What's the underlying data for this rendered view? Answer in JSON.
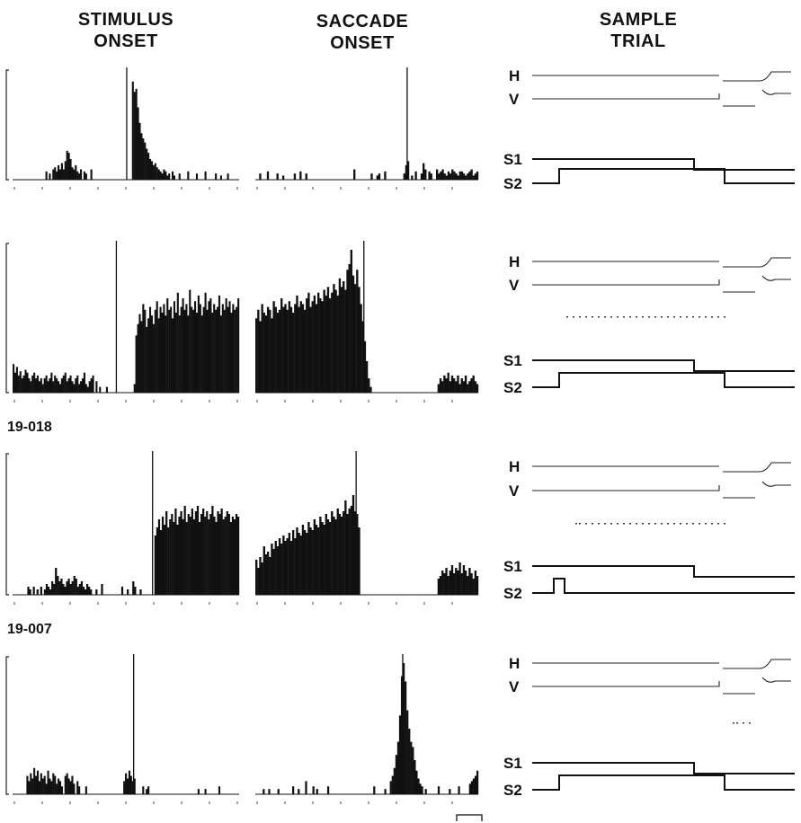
{
  "header": {
    "stimulus": [
      "STIMULUS",
      "ONSET"
    ],
    "saccade": [
      "SACCADE",
      "ONSET"
    ],
    "sample": [
      "SAMPLE",
      "TRIAL"
    ]
  },
  "chart_data": {
    "type": "bar",
    "description_units": "spike histogram bin height, arbitrary units (0-100 of panel scale)",
    "rows": [
      {
        "cell_label": "",
        "stimulus_hist": [
          0,
          0,
          0,
          0,
          0,
          0,
          0,
          0,
          0,
          0,
          0,
          0,
          0,
          0,
          0,
          0,
          0,
          0,
          0,
          8,
          0,
          6,
          0,
          10,
          12,
          8,
          14,
          10,
          16,
          10,
          18,
          28,
          26,
          20,
          12,
          10,
          14,
          8,
          6,
          10,
          0,
          8,
          6,
          0,
          0,
          10,
          0,
          0,
          0,
          0,
          0,
          0,
          0,
          0,
          0,
          0,
          0,
          0,
          0,
          0,
          0,
          0,
          0,
          0,
          0,
          0,
          0,
          0,
          0,
          95,
          85,
          88,
          70,
          55,
          45,
          40,
          36,
          30,
          26,
          20,
          18,
          14,
          16,
          12,
          10,
          8,
          6,
          10,
          8,
          4,
          6,
          0,
          8,
          4,
          0,
          0,
          6,
          0,
          0,
          0,
          0,
          8,
          0,
          0,
          0,
          0,
          6,
          0,
          0,
          0,
          0,
          8,
          0,
          0,
          0,
          0,
          0,
          6,
          0,
          0,
          4,
          0,
          0,
          0,
          6,
          0,
          0,
          0,
          0,
          0,
          0
        ],
        "saccade_hist": [
          0,
          0,
          6,
          0,
          0,
          0,
          8,
          0,
          0,
          0,
          0,
          6,
          0,
          0,
          4,
          0,
          0,
          0,
          0,
          0,
          6,
          0,
          0,
          8,
          0,
          0,
          6,
          0,
          0,
          0,
          0,
          0,
          0,
          0,
          0,
          0,
          0,
          0,
          0,
          0,
          0,
          0,
          0,
          0,
          0,
          0,
          0,
          0,
          0,
          0,
          0,
          10,
          0,
          0,
          0,
          0,
          0,
          0,
          0,
          0,
          6,
          0,
          0,
          4,
          6,
          0,
          0,
          8,
          0,
          0,
          0,
          0,
          0,
          0,
          0,
          0,
          0,
          6,
          14,
          18,
          0,
          4,
          0,
          8,
          0,
          0,
          6,
          16,
          10,
          0,
          8,
          6,
          0,
          0,
          10,
          6,
          8,
          10,
          6,
          4,
          8,
          6,
          10,
          8,
          6,
          4,
          8,
          8,
          6,
          4,
          6,
          8,
          10,
          4,
          6,
          8
        ],
        "stimulus_marker_bin": 66,
        "saccade_marker_bin": 79
      },
      {
        "cell_label": "19-018",
        "stimulus_hist": [
          20,
          14,
          18,
          12,
          15,
          10,
          12,
          16,
          14,
          10,
          8,
          12,
          14,
          10,
          12,
          8,
          10,
          6,
          10,
          12,
          8,
          10,
          14,
          8,
          12,
          10,
          8,
          6,
          10,
          12,
          14,
          8,
          10,
          12,
          8,
          6,
          10,
          12,
          6,
          8,
          10,
          14,
          6,
          4,
          8,
          10,
          12,
          0,
          8,
          0,
          4,
          0,
          0,
          0,
          4,
          0,
          0,
          0,
          0,
          0,
          0,
          0,
          0,
          0,
          0,
          0,
          0,
          0,
          0,
          0,
          6,
          40,
          48,
          55,
          50,
          62,
          58,
          46,
          52,
          60,
          54,
          48,
          58,
          64,
          52,
          60,
          56,
          62,
          54,
          66,
          58,
          60,
          52,
          64,
          56,
          70,
          54,
          60,
          66,
          58,
          62,
          54,
          72,
          60,
          58,
          64,
          56,
          68,
          62,
          54,
          60,
          70,
          58,
          64,
          66,
          56,
          62,
          58,
          60,
          68,
          54,
          62,
          58,
          66,
          60,
          64,
          56,
          62,
          58,
          60,
          66
        ],
        "saccade_hist": [
          52,
          58,
          50,
          62,
          56,
          54,
          60,
          58,
          52,
          64,
          60,
          56,
          58,
          66,
          60,
          62,
          58,
          64,
          60,
          56,
          62,
          68,
          60,
          64,
          62,
          58,
          66,
          70,
          60,
          64,
          68,
          62,
          70,
          66,
          64,
          72,
          68,
          74,
          66,
          70,
          76,
          72,
          68,
          80,
          74,
          78,
          72,
          86,
          90,
          100,
          82,
          76,
          86,
          74,
          62,
          50,
          36,
          22,
          10,
          4,
          0,
          0,
          0,
          0,
          0,
          0,
          0,
          0,
          0,
          0,
          0,
          0,
          0,
          0,
          0,
          0,
          0,
          0,
          0,
          0,
          0,
          0,
          0,
          0,
          0,
          0,
          0,
          0,
          0,
          0,
          0,
          0,
          0,
          0,
          6,
          10,
          8,
          12,
          10,
          14,
          8,
          12,
          10,
          8,
          12,
          6,
          10,
          8,
          12,
          6,
          8,
          10,
          12,
          8,
          6
        ],
        "stimulus_marker_bin": 60,
        "saccade_marker_bin": 56
      },
      {
        "cell_label": "19-007",
        "stimulus_hist": [
          0,
          0,
          0,
          0,
          0,
          0,
          0,
          0,
          6,
          4,
          0,
          6,
          0,
          4,
          0,
          6,
          0,
          4,
          8,
          6,
          4,
          10,
          8,
          20,
          14,
          10,
          12,
          8,
          6,
          10,
          12,
          8,
          10,
          14,
          12,
          6,
          8,
          10,
          6,
          4,
          8,
          6,
          4,
          0,
          0,
          4,
          0,
          0,
          8,
          0,
          0,
          0,
          0,
          0,
          0,
          0,
          0,
          0,
          0,
          6,
          0,
          0,
          4,
          0,
          0,
          10,
          6,
          0,
          0,
          4,
          0,
          0,
          0,
          0,
          0,
          0,
          0,
          44,
          50,
          56,
          48,
          58,
          52,
          62,
          50,
          56,
          60,
          54,
          64,
          52,
          58,
          62,
          56,
          66,
          54,
          60,
          58,
          64,
          56,
          62,
          66,
          54,
          60,
          64,
          58,
          62,
          56,
          60,
          66,
          58,
          54,
          62,
          60,
          64,
          56,
          58,
          62,
          60,
          54,
          58,
          56,
          60,
          58
        ],
        "saccade_hist": [
          26,
          20,
          28,
          24,
          36,
          30,
          32,
          28,
          38,
          34,
          40,
          36,
          42,
          38,
          44,
          40,
          42,
          46,
          40,
          48,
          42,
          50,
          46,
          44,
          52,
          48,
          46,
          54,
          50,
          48,
          56,
          52,
          50,
          58,
          54,
          52,
          60,
          56,
          54,
          62,
          58,
          56,
          64,
          60,
          58,
          62,
          70,
          60,
          64,
          66,
          74,
          62,
          60,
          50,
          0,
          0,
          0,
          0,
          0,
          0,
          0,
          0,
          0,
          0,
          0,
          0,
          0,
          0,
          0,
          0,
          0,
          0,
          0,
          0,
          0,
          0,
          0,
          0,
          0,
          0,
          0,
          0,
          0,
          0,
          0,
          0,
          0,
          0,
          0,
          0,
          0,
          0,
          0,
          0,
          12,
          14,
          18,
          16,
          20,
          14,
          18,
          22,
          16,
          20,
          18,
          24,
          16,
          22,
          18,
          14,
          20,
          16,
          12,
          18,
          14
        ],
        "stimulus_marker_bin": 76,
        "saccade_marker_bin": 52
      },
      {
        "cell_label": "19-007",
        "stimulus_hist": [
          0,
          0,
          0,
          0,
          0,
          0,
          0,
          0,
          14,
          10,
          16,
          12,
          20,
          14,
          18,
          10,
          16,
          12,
          14,
          8,
          18,
          12,
          10,
          16,
          14,
          8,
          12,
          10,
          6,
          0,
          14,
          16,
          12,
          10,
          14,
          8,
          0,
          10,
          6,
          0,
          0,
          0,
          6,
          0,
          0,
          0,
          0,
          0,
          0,
          0,
          0,
          0,
          0,
          0,
          0,
          0,
          0,
          0,
          0,
          0,
          0,
          0,
          0,
          0,
          10,
          16,
          12,
          18,
          14,
          10,
          12,
          0,
          0,
          0,
          0,
          6,
          0,
          4,
          6,
          0,
          0,
          0,
          0,
          0,
          0,
          0,
          0,
          0,
          0,
          0,
          0,
          0,
          0,
          0,
          0,
          0,
          0,
          0,
          0,
          0,
          0,
          0,
          0,
          0,
          0,
          0,
          0,
          4,
          0,
          0,
          0,
          4,
          0,
          0,
          0,
          0,
          0,
          0,
          0,
          6,
          0,
          0,
          0,
          0,
          0,
          0,
          0,
          0,
          0,
          0,
          0
        ],
        "saccade_hist": [
          0,
          0,
          0,
          0,
          4,
          0,
          0,
          4,
          0,
          0,
          0,
          0,
          4,
          0,
          0,
          0,
          0,
          0,
          0,
          0,
          6,
          0,
          0,
          4,
          0,
          0,
          0,
          10,
          0,
          0,
          0,
          6,
          0,
          4,
          0,
          0,
          0,
          0,
          0,
          6,
          0,
          0,
          0,
          0,
          0,
          0,
          0,
          0,
          0,
          0,
          0,
          0,
          0,
          0,
          0,
          0,
          0,
          0,
          0,
          0,
          0,
          0,
          0,
          0,
          6,
          0,
          0,
          0,
          0,
          0,
          4,
          0,
          0,
          10,
          14,
          20,
          30,
          40,
          60,
          90,
          100,
          86,
          64,
          50,
          40,
          36,
          26,
          18,
          12,
          8,
          6,
          0,
          4,
          0,
          0,
          0,
          0,
          0,
          0,
          6,
          0,
          0,
          0,
          0,
          0,
          4,
          0,
          0,
          0,
          0,
          6,
          0,
          0,
          0,
          0,
          0,
          8,
          10,
          12,
          14,
          18
        ],
        "stimulus_marker_bin": 70,
        "saccade_marker_bin": 80
      }
    ],
    "sample_trial_labels": {
      "h": "H",
      "v": "V",
      "s1": "S1",
      "s2": "S2"
    },
    "scale_bar": true
  }
}
